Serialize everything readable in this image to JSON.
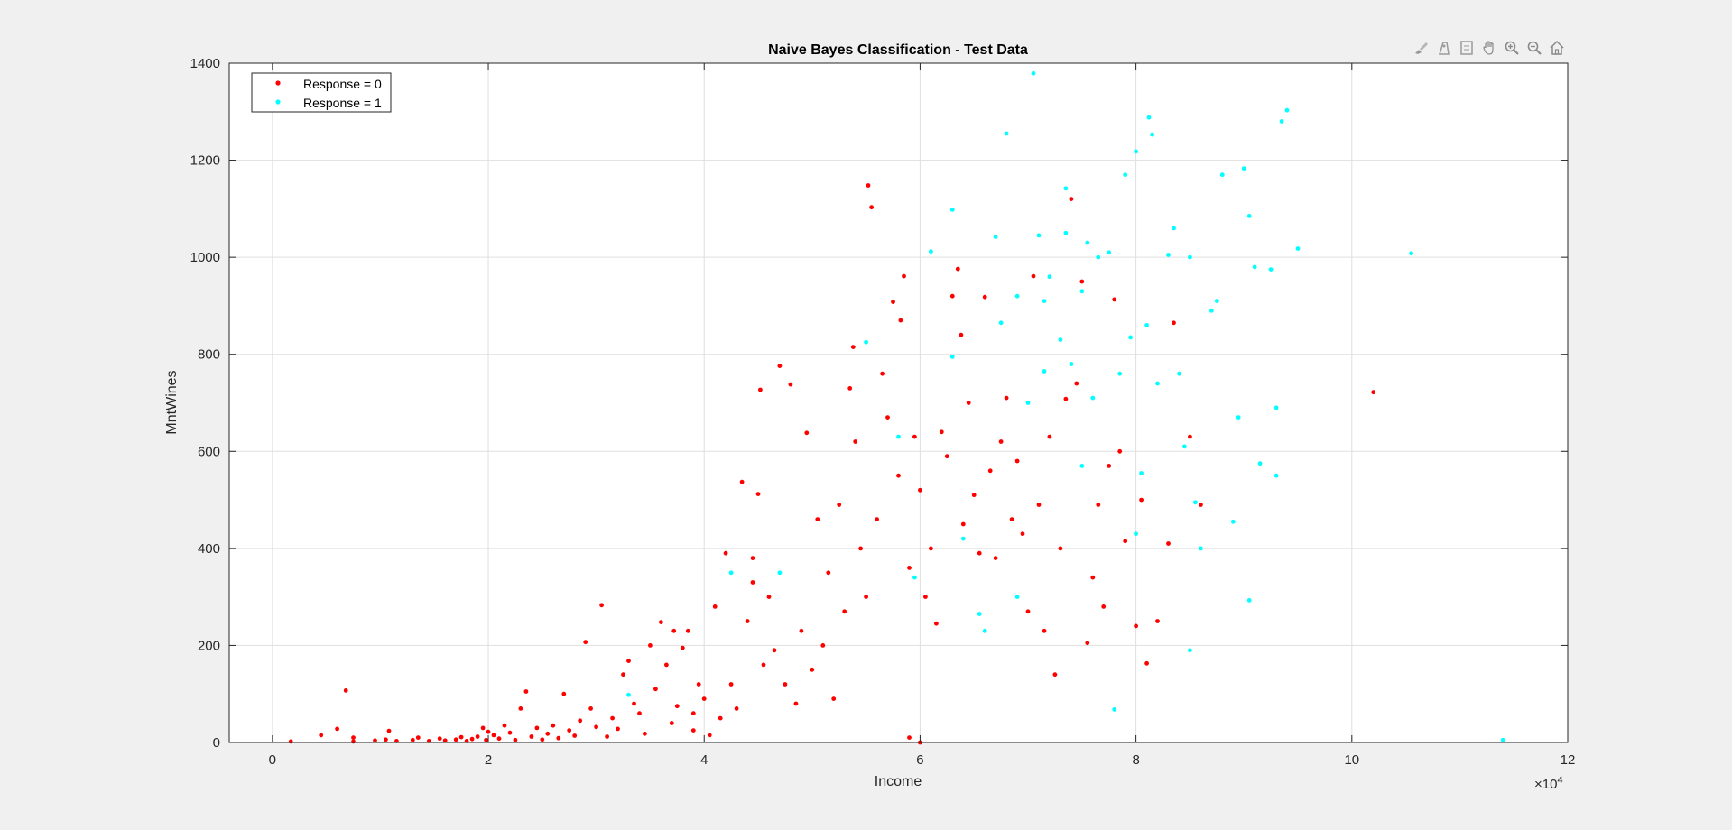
{
  "toolbar": {
    "icons": [
      "brush-icon",
      "datatips-icon",
      "data-cursor-icon",
      "pan-hand-icon",
      "zoom-in-icon",
      "zoom-out-icon",
      "home-icon"
    ]
  },
  "colors": {
    "response0": "#ff0000",
    "response1": "#00ffff",
    "background": "#f0f0f0",
    "axes": "#ffffff",
    "grid": "#dfdfdf"
  },
  "chart_data": {
    "type": "scatter",
    "title": "Naive Bayes Classification - Test Data",
    "xlabel": "Income",
    "ylabel": "MntWines",
    "x_exponent_label": "×10",
    "x_exponent_power": "4",
    "x_scale": 10000,
    "xlim": [
      -0.4,
      12
    ],
    "ylim": [
      0,
      1400
    ],
    "xticks": [
      0,
      2,
      4,
      6,
      8,
      10,
      12
    ],
    "xtick_labels": [
      "0",
      "2",
      "4",
      "6",
      "8",
      "10",
      "12"
    ],
    "yticks": [
      0,
      200,
      400,
      600,
      800,
      1000,
      1200,
      1400
    ],
    "ytick_labels": [
      "0",
      "200",
      "400",
      "600",
      "800",
      "1000",
      "1200",
      "1400"
    ],
    "grid": true,
    "legend_position": "top-left",
    "series": [
      {
        "name": "Response = 0",
        "color": "#ff0000",
        "points": [
          [
            0.17,
            2
          ],
          [
            0.45,
            15
          ],
          [
            0.6,
            28
          ],
          [
            0.68,
            107
          ],
          [
            0.75,
            2
          ],
          [
            0.75,
            10
          ],
          [
            0.95,
            4
          ],
          [
            1.05,
            6
          ],
          [
            1.08,
            24
          ],
          [
            1.15,
            3
          ],
          [
            1.3,
            5
          ],
          [
            1.35,
            10
          ],
          [
            1.45,
            3
          ],
          [
            1.55,
            8
          ],
          [
            1.6,
            4
          ],
          [
            1.7,
            6
          ],
          [
            1.75,
            11
          ],
          [
            1.8,
            3
          ],
          [
            1.85,
            7
          ],
          [
            1.9,
            12
          ],
          [
            1.95,
            30
          ],
          [
            1.98,
            5
          ],
          [
            2.0,
            22
          ],
          [
            2.05,
            15
          ],
          [
            2.1,
            8
          ],
          [
            2.15,
            35
          ],
          [
            2.2,
            20
          ],
          [
            2.25,
            5
          ],
          [
            2.3,
            70
          ],
          [
            2.35,
            105
          ],
          [
            2.4,
            12
          ],
          [
            2.45,
            30
          ],
          [
            2.5,
            6
          ],
          [
            2.55,
            18
          ],
          [
            2.6,
            35
          ],
          [
            2.65,
            9
          ],
          [
            2.7,
            100
          ],
          [
            2.75,
            25
          ],
          [
            2.8,
            14
          ],
          [
            2.85,
            45
          ],
          [
            2.9,
            207
          ],
          [
            2.95,
            70
          ],
          [
            3.0,
            32
          ],
          [
            3.05,
            283
          ],
          [
            3.1,
            12
          ],
          [
            3.15,
            50
          ],
          [
            3.2,
            28
          ],
          [
            3.25,
            140
          ],
          [
            3.3,
            168
          ],
          [
            3.35,
            80
          ],
          [
            3.4,
            60
          ],
          [
            3.45,
            18
          ],
          [
            3.5,
            200
          ],
          [
            3.55,
            110
          ],
          [
            3.6,
            248
          ],
          [
            3.65,
            160
          ],
          [
            3.7,
            40
          ],
          [
            3.72,
            230
          ],
          [
            3.75,
            75
          ],
          [
            3.8,
            195
          ],
          [
            3.85,
            230
          ],
          [
            3.9,
            25
          ],
          [
            3.95,
            120
          ],
          [
            4.0,
            90
          ],
          [
            4.05,
            15
          ],
          [
            4.1,
            280
          ],
          [
            4.15,
            50
          ],
          [
            4.2,
            390
          ],
          [
            4.25,
            120
          ],
          [
            4.3,
            70
          ],
          [
            4.35,
            537
          ],
          [
            4.4,
            250
          ],
          [
            4.45,
            330
          ],
          [
            4.5,
            512
          ],
          [
            4.52,
            727
          ],
          [
            4.55,
            160
          ],
          [
            4.6,
            300
          ],
          [
            4.65,
            190
          ],
          [
            4.7,
            776
          ],
          [
            4.75,
            120
          ],
          [
            4.8,
            738
          ],
          [
            4.85,
            80
          ],
          [
            4.9,
            230
          ],
          [
            4.95,
            638
          ],
          [
            5.0,
            150
          ],
          [
            5.05,
            460
          ],
          [
            5.1,
            200
          ],
          [
            5.15,
            350
          ],
          [
            5.2,
            90
          ],
          [
            5.25,
            490
          ],
          [
            5.3,
            270
          ],
          [
            5.35,
            730
          ],
          [
            5.38,
            815
          ],
          [
            5.4,
            620
          ],
          [
            5.45,
            400
          ],
          [
            5.5,
            300
          ],
          [
            5.52,
            1148
          ],
          [
            5.55,
            1103
          ],
          [
            5.6,
            460
          ],
          [
            5.65,
            760
          ],
          [
            5.7,
            670
          ],
          [
            5.75,
            908
          ],
          [
            5.8,
            550
          ],
          [
            5.82,
            870
          ],
          [
            5.85,
            961
          ],
          [
            5.9,
            360
          ],
          [
            5.95,
            630
          ],
          [
            6.0,
            520
          ],
          [
            6.05,
            300
          ],
          [
            6.1,
            400
          ],
          [
            6.15,
            245
          ],
          [
            6.2,
            640
          ],
          [
            6.25,
            590
          ],
          [
            6.3,
            920
          ],
          [
            6.35,
            976
          ],
          [
            6.38,
            840
          ],
          [
            6.4,
            450
          ],
          [
            6.45,
            700
          ],
          [
            6.5,
            510
          ],
          [
            6.55,
            390
          ],
          [
            6.6,
            918
          ],
          [
            6.65,
            560
          ],
          [
            6.7,
            380
          ],
          [
            6.75,
            620
          ],
          [
            6.8,
            710
          ],
          [
            6.85,
            460
          ],
          [
            6.9,
            580
          ],
          [
            6.95,
            430
          ],
          [
            7.0,
            270
          ],
          [
            7.05,
            961
          ],
          [
            7.1,
            490
          ],
          [
            7.15,
            230
          ],
          [
            7.2,
            630
          ],
          [
            7.25,
            140
          ],
          [
            7.3,
            400
          ],
          [
            7.35,
            708
          ],
          [
            7.4,
            1120
          ],
          [
            7.45,
            740
          ],
          [
            7.5,
            950
          ],
          [
            7.55,
            205
          ],
          [
            7.6,
            340
          ],
          [
            7.65,
            490
          ],
          [
            7.7,
            280
          ],
          [
            7.75,
            570
          ],
          [
            7.8,
            913
          ],
          [
            7.85,
            600
          ],
          [
            7.9,
            415
          ],
          [
            8.0,
            240
          ],
          [
            8.05,
            500
          ],
          [
            8.1,
            163
          ],
          [
            8.2,
            250
          ],
          [
            8.3,
            410
          ],
          [
            8.35,
            865
          ],
          [
            8.5,
            630
          ],
          [
            8.6,
            490
          ],
          [
            10.2,
            722
          ],
          [
            4.45,
            380
          ],
          [
            3.9,
            60
          ],
          [
            5.9,
            10
          ],
          [
            6.0,
            0
          ]
        ]
      },
      {
        "name": "Response = 1",
        "color": "#00ffff",
        "points": [
          [
            3.3,
            98
          ],
          [
            4.25,
            350
          ],
          [
            4.7,
            350
          ],
          [
            5.5,
            825
          ],
          [
            5.8,
            630
          ],
          [
            5.95,
            340
          ],
          [
            6.1,
            1012
          ],
          [
            6.3,
            1098
          ],
          [
            6.3,
            795
          ],
          [
            6.4,
            420
          ],
          [
            6.55,
            265
          ],
          [
            6.6,
            230
          ],
          [
            6.7,
            1042
          ],
          [
            6.75,
            865
          ],
          [
            6.8,
            1255
          ],
          [
            6.9,
            920
          ],
          [
            7.0,
            700
          ],
          [
            7.05,
            1379
          ],
          [
            7.1,
            1045
          ],
          [
            7.15,
            910
          ],
          [
            7.15,
            765
          ],
          [
            7.2,
            960
          ],
          [
            7.3,
            830
          ],
          [
            7.35,
            1050
          ],
          [
            7.35,
            1142
          ],
          [
            7.4,
            780
          ],
          [
            7.5,
            930
          ],
          [
            7.55,
            1030
          ],
          [
            7.6,
            710
          ],
          [
            7.65,
            1000
          ],
          [
            7.75,
            1010
          ],
          [
            7.8,
            68
          ],
          [
            7.85,
            760
          ],
          [
            7.9,
            1170
          ],
          [
            7.95,
            835
          ],
          [
            8.0,
            1218
          ],
          [
            8.05,
            555
          ],
          [
            8.1,
            860
          ],
          [
            8.12,
            1288
          ],
          [
            8.15,
            1253
          ],
          [
            8.2,
            740
          ],
          [
            8.3,
            1005
          ],
          [
            8.35,
            1060
          ],
          [
            8.4,
            760
          ],
          [
            8.45,
            610
          ],
          [
            8.5,
            1000
          ],
          [
            8.55,
            495
          ],
          [
            8.6,
            400
          ],
          [
            8.7,
            890
          ],
          [
            8.75,
            910
          ],
          [
            8.8,
            1170
          ],
          [
            8.9,
            455
          ],
          [
            8.95,
            670
          ],
          [
            9.0,
            1183
          ],
          [
            9.05,
            1085
          ],
          [
            9.1,
            980
          ],
          [
            9.15,
            575
          ],
          [
            9.25,
            975
          ],
          [
            9.3,
            550
          ],
          [
            9.3,
            690
          ],
          [
            9.35,
            1280
          ],
          [
            9.4,
            1303
          ],
          [
            9.5,
            1018
          ],
          [
            10.55,
            1008
          ],
          [
            11.4,
            5
          ],
          [
            9.05,
            293
          ],
          [
            8.5,
            190
          ],
          [
            8.0,
            430
          ],
          [
            7.5,
            570
          ],
          [
            6.9,
            300
          ]
        ]
      }
    ]
  }
}
